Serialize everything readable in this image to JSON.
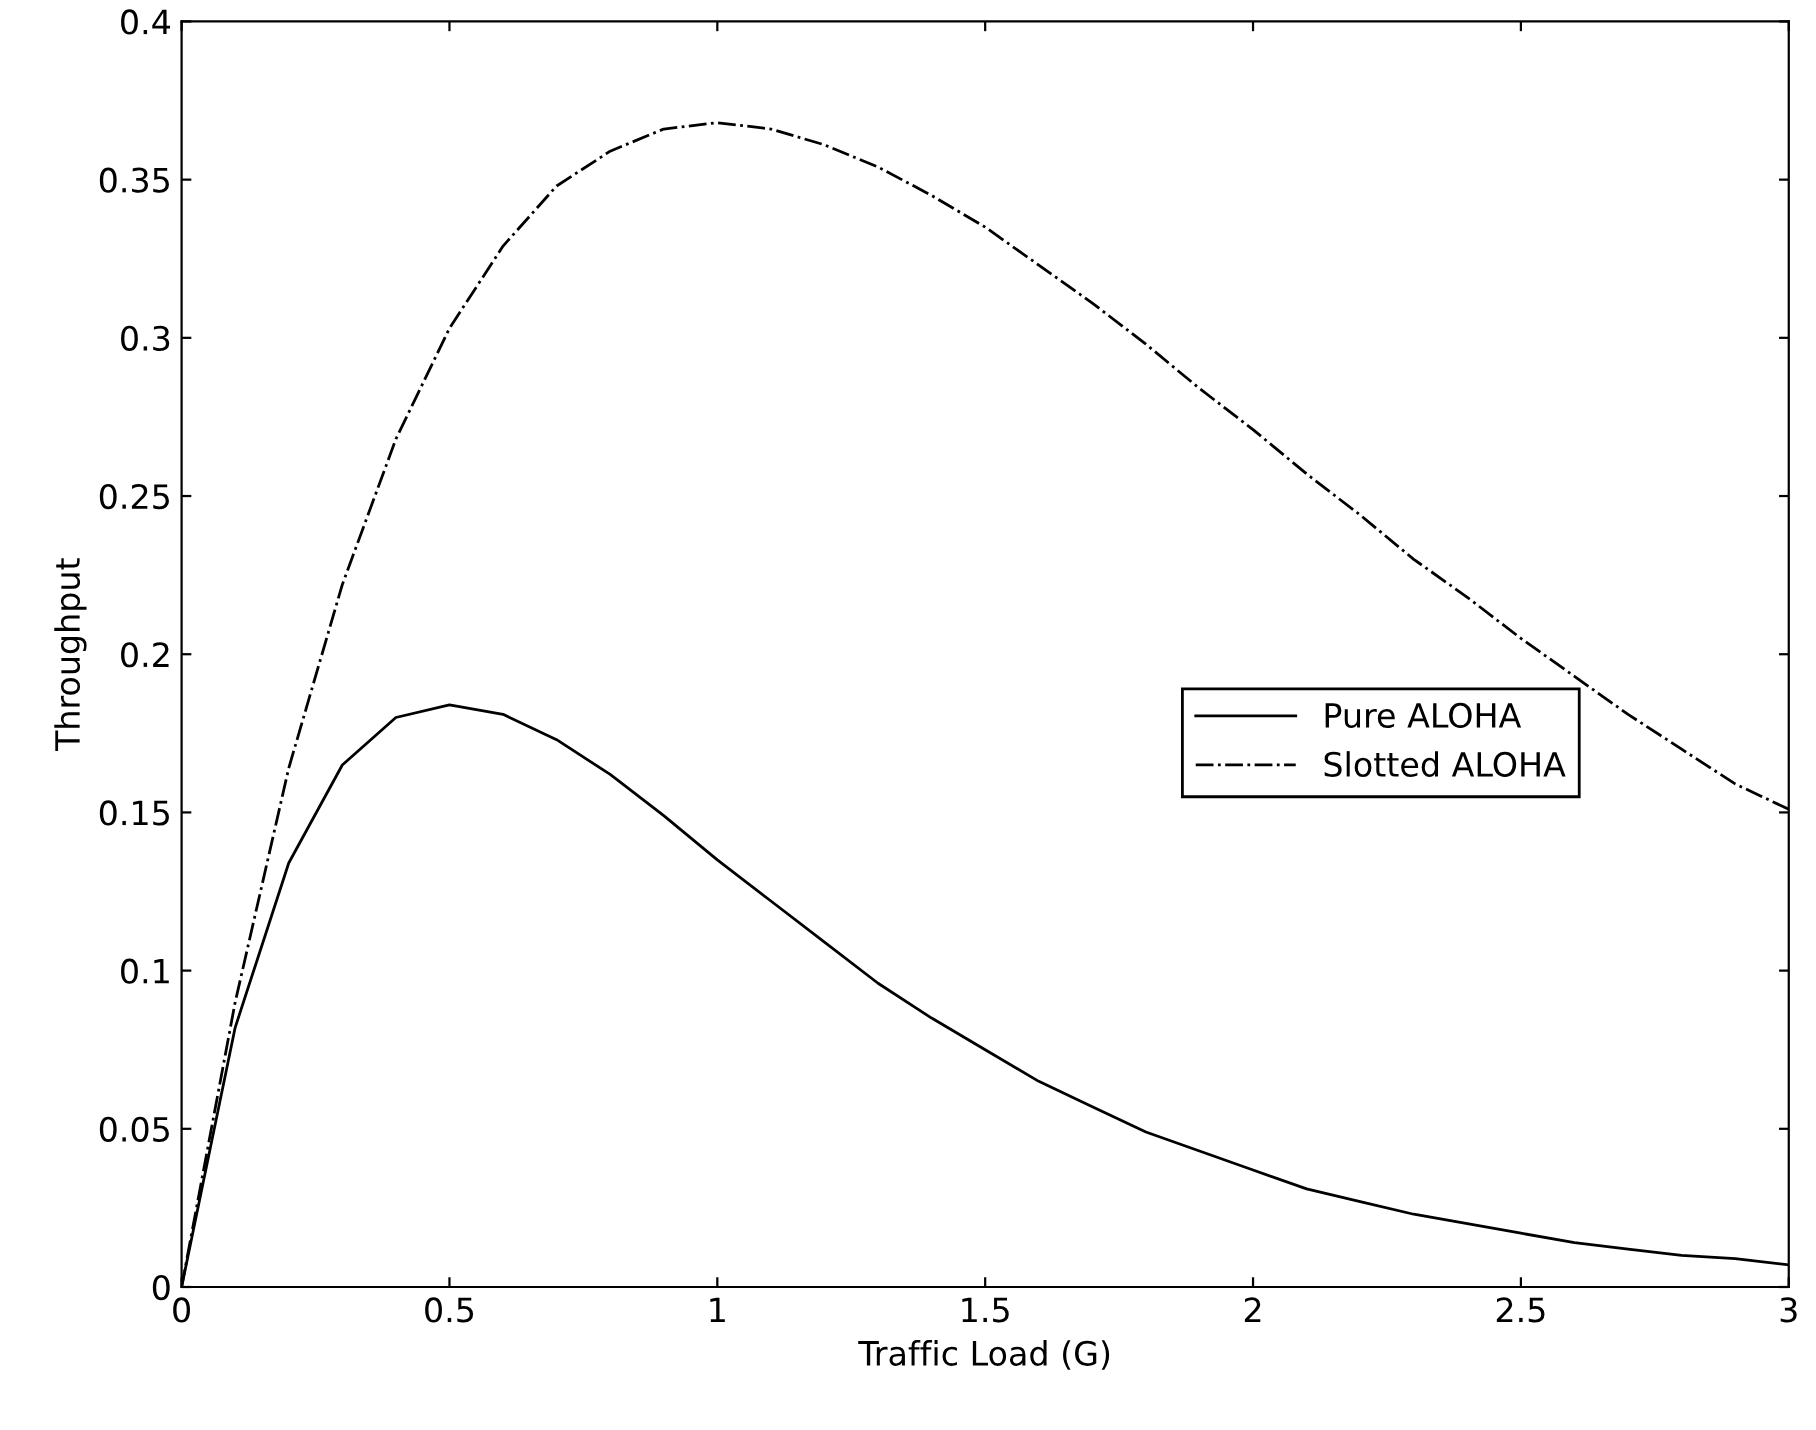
{
  "chart_data": {
    "type": "line",
    "xlabel": "Traffic Load (G)",
    "ylabel": "Throughput",
    "x": [
      0,
      0.1,
      0.2,
      0.3,
      0.4,
      0.5,
      0.6,
      0.7,
      0.8,
      0.9,
      1,
      1.1,
      1.2,
      1.3,
      1.4,
      1.5,
      1.6,
      1.7,
      1.8,
      1.9,
      2,
      2.1,
      2.2,
      2.3,
      2.4,
      2.5,
      2.6,
      2.7,
      2.8,
      2.9,
      3
    ],
    "series": [
      {
        "name": "Pure ALOHA",
        "color": "#000000",
        "line_style": "solid",
        "values": [
          0,
          0.082,
          0.134,
          0.165,
          0.18,
          0.184,
          0.181,
          0.173,
          0.162,
          0.149,
          0.135,
          0.122,
          0.109,
          0.096,
          0.085,
          0.075,
          0.065,
          0.057,
          0.049,
          0.043,
          0.037,
          0.031,
          0.027,
          0.023,
          0.02,
          0.017,
          0.014,
          0.012,
          0.01,
          0.009,
          0.007
        ]
      },
      {
        "name": "Slotted ALOHA",
        "color": "#000000",
        "line_style": "dashdot",
        "values": [
          0,
          0.09,
          0.164,
          0.222,
          0.268,
          0.303,
          0.329,
          0.348,
          0.359,
          0.366,
          0.368,
          0.366,
          0.361,
          0.354,
          0.345,
          0.335,
          0.323,
          0.311,
          0.298,
          0.284,
          0.271,
          0.257,
          0.244,
          0.23,
          0.218,
          0.205,
          0.193,
          0.181,
          0.17,
          0.159,
          0.151
        ]
      }
    ],
    "xlim": [
      0,
      3
    ],
    "ylim": [
      0,
      0.4
    ],
    "xticks": [
      0,
      0.5,
      1,
      1.5,
      2,
      2.5,
      3
    ],
    "yticks": [
      0,
      0.05,
      0.1,
      0.15,
      0.2,
      0.25,
      0.3,
      0.35,
      0.4
    ],
    "grid": false,
    "legend": "right"
  }
}
